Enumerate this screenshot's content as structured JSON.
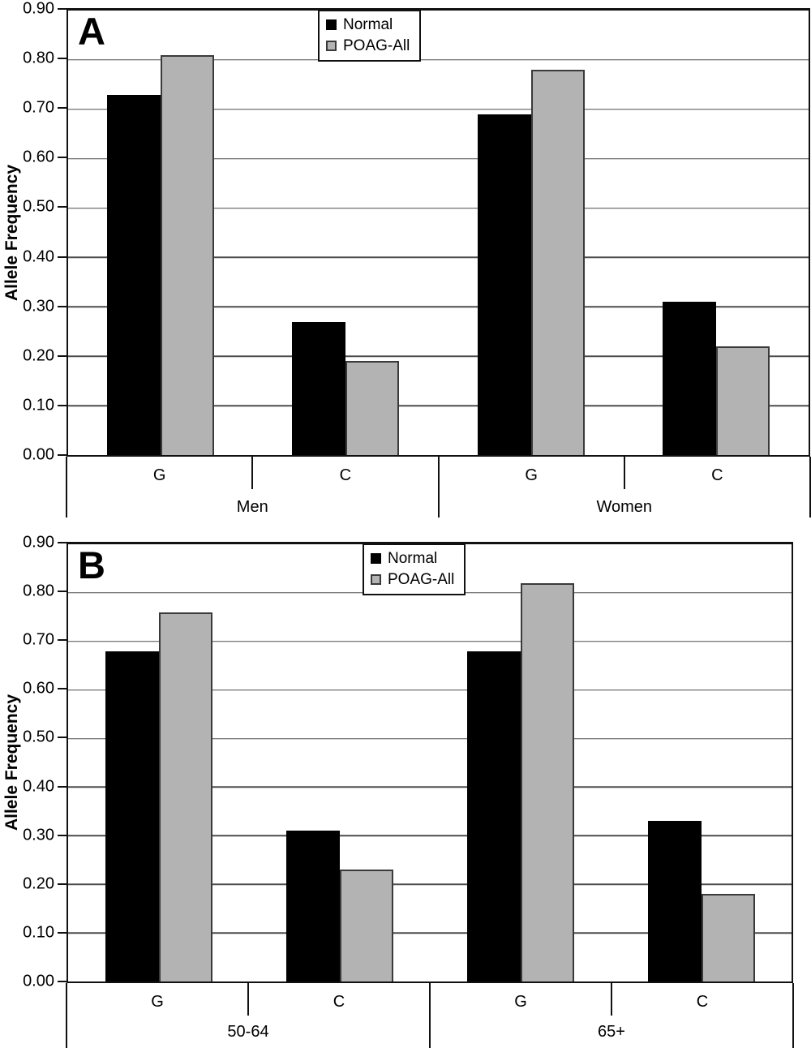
{
  "figure": {
    "background": "#ffffff",
    "colors": {
      "normal_fill": "#000000",
      "poag_fill": "#b3b3b3",
      "poag_border": "#3a3a3a",
      "axis": "#111111",
      "gridline": "#4d4d4d"
    }
  },
  "chart_data": [
    {
      "type": "bar",
      "panel_label": "A",
      "title": "",
      "ylabel": "Allele Frequency",
      "xlabel": "",
      "ylim": [
        0,
        0.9
      ],
      "ytick_labels": [
        "0.90",
        "0.80",
        "0.70",
        "0.60",
        "0.50",
        "0.40",
        "0.30",
        "0.20",
        "0.10",
        "0.00"
      ],
      "grid": "horizontal",
      "legend_position": "top-center-inside",
      "groups": [
        {
          "label": "Men",
          "categories": [
            "G",
            "C"
          ]
        },
        {
          "label": "Women",
          "categories": [
            "G",
            "C"
          ]
        }
      ],
      "categories": [
        "G",
        "C",
        "G",
        "C"
      ],
      "series": [
        {
          "name": "Normal",
          "values": [
            0.73,
            0.27,
            0.69,
            0.31
          ]
        },
        {
          "name": "POAG-All",
          "values": [
            0.81,
            0.19,
            0.78,
            0.22
          ]
        }
      ]
    },
    {
      "type": "bar",
      "panel_label": "B",
      "title": "",
      "ylabel": "Allele Frequency",
      "xlabel": "",
      "ylim": [
        0,
        0.9
      ],
      "ytick_labels": [
        "0.90",
        "0.80",
        "0.70",
        "0.60",
        "0.50",
        "0.40",
        "0.30",
        "0.20",
        "0.10",
        "0.00"
      ],
      "grid": "horizontal",
      "legend_position": "top-center-inside",
      "groups": [
        {
          "label": "50-64",
          "categories": [
            "G",
            "C"
          ]
        },
        {
          "label": "65+",
          "categories": [
            "G",
            "C"
          ]
        }
      ],
      "categories": [
        "G",
        "C",
        "G",
        "C"
      ],
      "series": [
        {
          "name": "Normal",
          "values": [
            0.68,
            0.31,
            0.68,
            0.33
          ]
        },
        {
          "name": "POAG-All",
          "values": [
            0.76,
            0.23,
            0.82,
            0.18
          ]
        }
      ]
    }
  ]
}
